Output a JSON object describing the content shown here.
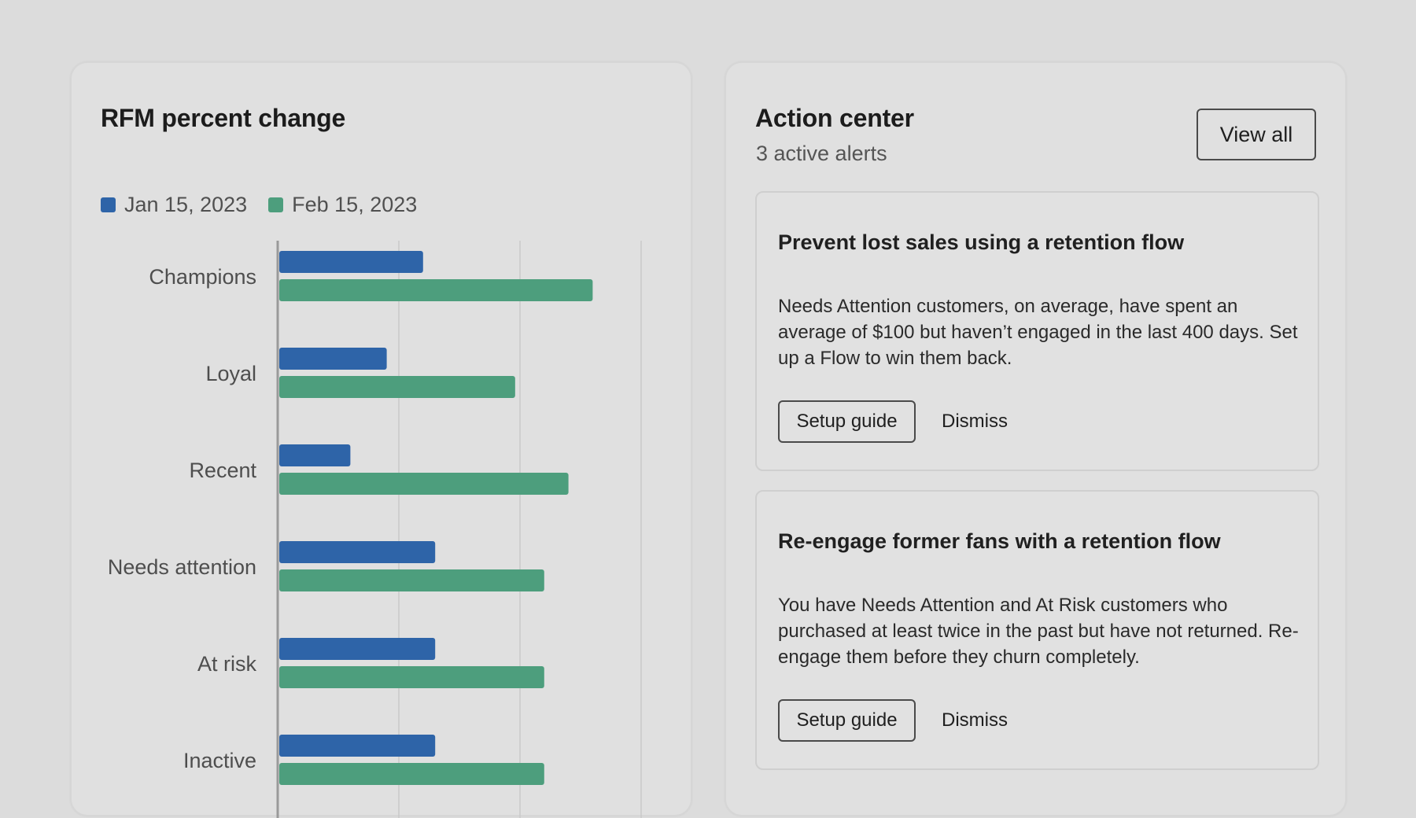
{
  "rfm_card": {
    "title": "RFM percent change",
    "legend": [
      {
        "label": "Jan 15, 2023",
        "color": "#2e64a8"
      },
      {
        "label": "Feb 15, 2023",
        "color": "#4d9e7d"
      }
    ]
  },
  "chart_data": {
    "type": "bar",
    "orientation": "horizontal",
    "title": "RFM percent change",
    "categories": [
      "Champions",
      "Loyal",
      "Recent",
      "Needs attention",
      "At risk",
      "Inactive"
    ],
    "series": [
      {
        "name": "Jan 15, 2023",
        "color": "#2e64a8",
        "values": [
          30,
          22.5,
          15,
          32.5,
          32.5,
          32.5
        ]
      },
      {
        "name": "Feb 15, 2023",
        "color": "#4d9e7d",
        "values": [
          65,
          49,
          60,
          55,
          55,
          55
        ]
      }
    ],
    "xlim": [
      0,
      75
    ],
    "grid": true,
    "x_tick_labels_visible": false,
    "legend_position": "top-left"
  },
  "action_center": {
    "title": "Action center",
    "subtitle": "3 active alerts",
    "view_all_label": "View all",
    "alerts": [
      {
        "title": "Prevent lost sales using a retention flow",
        "body": "Needs Attention customers, on average, have spent an average of $100 but haven’t engaged in the last 400 days. Set up a Flow to win them back.",
        "primary_label": "Setup guide",
        "dismiss_label": "Dismiss"
      },
      {
        "title": "Re-engage former fans with a retention flow",
        "body": "You have Needs Attention and At Risk customers who purchased at least twice in the past but have not returned. Re-engage them before they churn completely.",
        "primary_label": "Setup guide",
        "dismiss_label": "Dismiss"
      }
    ]
  }
}
